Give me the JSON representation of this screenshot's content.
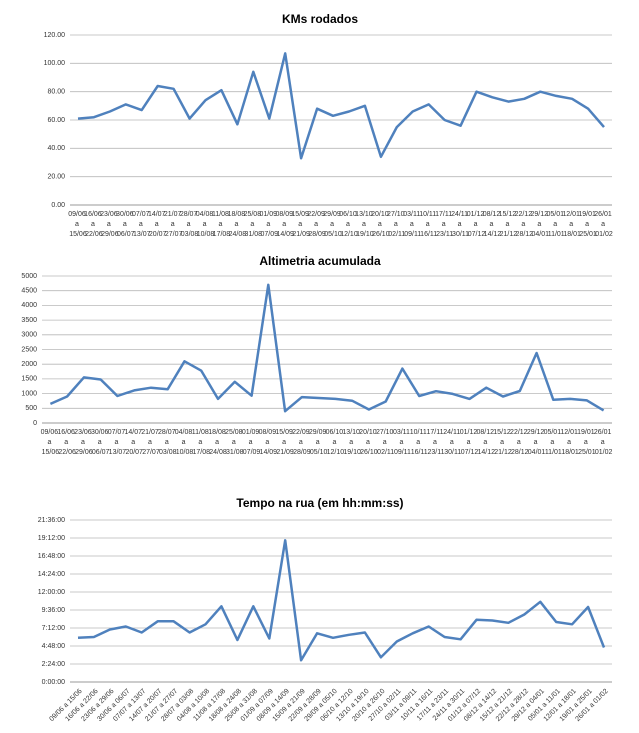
{
  "chart_data": [
    {
      "type": "line",
      "title": "KMs rodados",
      "categories": [
        "09/06 a 15/06",
        "16/06 a 22/06",
        "23/06 a 29/06",
        "30/06 a 06/07",
        "07/07 a 13/07",
        "14/07 a 20/07",
        "21/07 a 27/07",
        "28/07 a 03/08",
        "04/08 a 10/08",
        "11/08 a 17/08",
        "18/08 a 24/08",
        "25/08 a 31/08",
        "01/09 a 07/09",
        "08/09 a 14/09",
        "15/09 a 21/09",
        "22/09 a 28/09",
        "29/09 a 05/10",
        "06/10 a 12/10",
        "13/10 a 19/10",
        "20/10 a 26/10",
        "27/10 a 02/11",
        "03/11 a 09/11",
        "10/11 a 16/11",
        "17/11 a 23/11",
        "24/11 a 30/11",
        "01/12 a 07/12",
        "08/12 a 14/12",
        "15/12 a 21/12",
        "22/12 a 28/12",
        "29/12 a 04/01",
        "05/01 a 11/01",
        "12/01 a 18/01",
        "19/01 a 25/01",
        "26/01 a 01/02"
      ],
      "values": [
        61,
        62,
        66,
        71,
        67,
        84,
        82,
        61,
        74,
        81,
        57,
        94,
        61,
        107,
        33,
        68,
        63,
        66,
        70,
        34,
        55,
        66,
        71,
        60,
        56,
        80,
        76,
        73,
        75,
        80,
        77,
        75,
        68,
        55
      ],
      "color": "#4f81bd",
      "ylim": [
        0,
        120
      ],
      "yticks": [
        {
          "value": 0,
          "label": "0.00"
        },
        {
          "value": 20,
          "label": "20.00"
        },
        {
          "value": 40,
          "label": "40.00"
        },
        {
          "value": 60,
          "label": "60.00"
        },
        {
          "value": 80,
          "label": "80.00"
        },
        {
          "value": 100,
          "label": "100.00"
        },
        {
          "value": 120,
          "label": "120.00"
        }
      ],
      "grid": true
    },
    {
      "type": "line",
      "title": "Altimetria acumulada",
      "categories": [
        "09/06 a 15/06",
        "16/06 a 22/06",
        "23/06 a 29/06",
        "30/06 a 06/07",
        "07/07 a 13/07",
        "14/07 a 20/07",
        "21/07 a 27/07",
        "28/07 a 03/08",
        "04/08 a 10/08",
        "11/08 a 17/08",
        "18/08 a 24/08",
        "25/08 a 31/08",
        "01/09 a 07/09",
        "08/09 a 14/09",
        "15/09 a 21/09",
        "22/09 a 28/09",
        "29/09 a 05/10",
        "06/10 a 12/10",
        "13/10 a 19/10",
        "20/10 a 26/10",
        "27/10 a 02/11",
        "03/11 a 09/11",
        "10/11 a 16/11",
        "17/11 a 23/11",
        "24/11 a 30/11",
        "01/12 a 07/12",
        "08/12 a 14/12",
        "15/12 a 21/12",
        "22/12 a 28/12",
        "29/12 a 04/01",
        "05/01 a 11/01",
        "12/01 a 18/01",
        "19/01 a 25/01",
        "26/01 a 01/02"
      ],
      "values": [
        650,
        900,
        1550,
        1480,
        920,
        1110,
        1200,
        1150,
        2100,
        1780,
        820,
        1400,
        930,
        4700,
        400,
        880,
        850,
        820,
        760,
        460,
        730,
        1850,
        920,
        1080,
        990,
        820,
        1200,
        900,
        1090,
        2380,
        790,
        820,
        770,
        430
      ],
      "color": "#4f81bd",
      "ylim": [
        0,
        5000
      ],
      "yticks": [
        0,
        500,
        1000,
        1500,
        2000,
        2500,
        3000,
        3500,
        4000,
        4500,
        5000
      ],
      "grid": true
    },
    {
      "type": "line",
      "title": "Tempo na rua (em hh:mm:ss)",
      "categories": [
        "09/06 a 15/06",
        "16/06 a 22/06",
        "23/06 a 29/06",
        "30/06 a 06/07",
        "07/07 a 13/07",
        "14/07 a 20/07",
        "21/07 a 27/07",
        "28/07 a 03/08",
        "04/08 a 10/08",
        "11/08 a 17/08",
        "18/08 a 24/08",
        "25/08 a 31/08",
        "01/09 a 07/09",
        "08/09 a 14/09",
        "15/09 a 21/09",
        "22/09 a 28/09",
        "29/09 a 05/10",
        "06/10 a 12/10",
        "13/10 a 19/10",
        "20/10 a 26/10",
        "27/10 a 02/11",
        "03/11 a 09/11",
        "10/11 a 16/11",
        "17/11 a 23/11",
        "24/11 a 30/11",
        "01/12 a 07/12",
        "08/12 a 14/12",
        "15/12 a 21/12",
        "22/12 a 28/12",
        "29/12 a 04/01",
        "05/01 a 11/01",
        "12/01 a 18/01",
        "19/01 a 25/01",
        "26/01 a 01/02"
      ],
      "values": [
        21240,
        21600,
        25200,
        26640,
        23760,
        29160,
        29160,
        23760,
        27720,
        36360,
        20160,
        36360,
        20880,
        68040,
        10440,
        23400,
        21240,
        22680,
        23760,
        11880,
        19440,
        23400,
        26640,
        21600,
        20520,
        29880,
        29520,
        28440,
        32400,
        38520,
        28800,
        27720,
        36000,
        16560
      ],
      "color": "#4f81bd",
      "ylim": [
        0,
        77760
      ],
      "yticks": [
        {
          "value": 0,
          "label": "0:00:00"
        },
        {
          "value": 8640,
          "label": "2:24:00"
        },
        {
          "value": 17280,
          "label": "4:48:00"
        },
        {
          "value": 25920,
          "label": "7:12:00"
        },
        {
          "value": 34560,
          "label": "9:36:00"
        },
        {
          "value": 43200,
          "label": "12:00:00"
        },
        {
          "value": 51840,
          "label": "14:24:00"
        },
        {
          "value": 60480,
          "label": "16:48:00"
        },
        {
          "value": 69120,
          "label": "19:12:00"
        },
        {
          "value": 77760,
          "label": "21:36:00"
        }
      ],
      "grid": true
    }
  ]
}
